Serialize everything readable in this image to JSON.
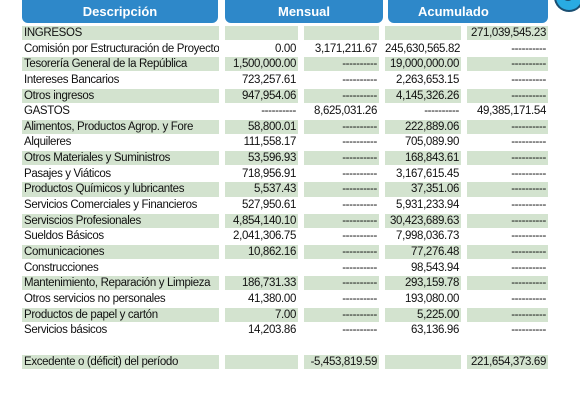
{
  "header": {
    "description_label": "Descripción",
    "monthly_label": "Mensual",
    "cumulative_label": "Acumulado"
  },
  "rows": [
    {
      "desc": "INGRESOS",
      "m1": "",
      "m2": "",
      "a1": "",
      "a2": "271,039,545.23"
    },
    {
      "desc": "Comisión por Estructuración de Proyectos",
      "m1": "0.00",
      "m2": "3,171,211.67",
      "a1": "245,630,565.82",
      "a2": "----------"
    },
    {
      "desc": "Tesorería General de la República",
      "m1": "1,500,000.00",
      "m2": "----------",
      "a1": "19,000,000.00",
      "a2": "----------"
    },
    {
      "desc": "Intereses Bancarios",
      "m1": "723,257.61",
      "m2": "----------",
      "a1": "2,263,653.15",
      "a2": "----------"
    },
    {
      "desc": "Otros ingresos",
      "m1": "947,954.06",
      "m2": "----------",
      "a1": "4,145,326.26",
      "a2": "----------"
    },
    {
      "desc": "GASTOS",
      "m1": "----------",
      "m2": "8,625,031.26",
      "a1": "----------",
      "a2": "49,385,171.54"
    },
    {
      "desc": "Alimentos, Productos Agrop. y Fore",
      "m1": "58,800.01",
      "m2": "----------",
      "a1": "222,889.06",
      "a2": "----------"
    },
    {
      "desc": "Alquileres",
      "m1": "111,558.17",
      "m2": "----------",
      "a1": "705,089.90",
      "a2": "----------"
    },
    {
      "desc": "Otros Materiales y Suministros",
      "m1": "53,596.93",
      "m2": "----------",
      "a1": "168,843.61",
      "a2": "----------"
    },
    {
      "desc": "Pasajes y Viáticos",
      "m1": "718,956.91",
      "m2": "----------",
      "a1": "3,167,615.45",
      "a2": "----------"
    },
    {
      "desc": "Productos Químicos y lubricantes",
      "m1": "5,537.43",
      "m2": "----------",
      "a1": "37,351.06",
      "a2": "----------"
    },
    {
      "desc": "Servicios Comerciales y Financieros",
      "m1": "527,950.61",
      "m2": "----------",
      "a1": "5,931,233.94",
      "a2": "----------"
    },
    {
      "desc": "Serviscios Profesionales",
      "m1": "4,854,140.10",
      "m2": "----------",
      "a1": "30,423,689.63",
      "a2": "----------"
    },
    {
      "desc": "Sueldos Básicos",
      "m1": "2,041,306.75",
      "m2": "----------",
      "a1": "7,998,036.73",
      "a2": "----------"
    },
    {
      "desc": "Comunicaciones",
      "m1": "10,862.16",
      "m2": "----------",
      "a1": "77,276.48",
      "a2": "----------"
    },
    {
      "desc": "Construcciones",
      "m1": "",
      "m2": "----------",
      "a1": "98,543.94",
      "a2": "----------"
    },
    {
      "desc": "Mantenimiento, Reparación y Limpieza",
      "m1": "186,731.33",
      "m2": "----------",
      "a1": "293,159.78",
      "a2": "----------"
    },
    {
      "desc": "Otros servicios no personales",
      "m1": "41,380.00",
      "m2": "----------",
      "a1": "193,080.00",
      "a2": "----------"
    },
    {
      "desc": "Productos de papel y cartón",
      "m1": "7.00",
      "m2": "----------",
      "a1": "5,225.00",
      "a2": "----------"
    },
    {
      "desc": "Servicios básicos",
      "m1": "14,203.86",
      "m2": "----------",
      "a1": "63,136.96",
      "a2": "----------"
    }
  ],
  "total": {
    "desc": "Excedente o (déficit) del período",
    "m1": "",
    "m2": "-5,453,819.59",
    "a1": "",
    "a2": "221,654,373.69"
  },
  "colors": {
    "header_bg": "#2e88c9",
    "row_shade": "#d3e3cf",
    "logo": "#29abe2"
  }
}
